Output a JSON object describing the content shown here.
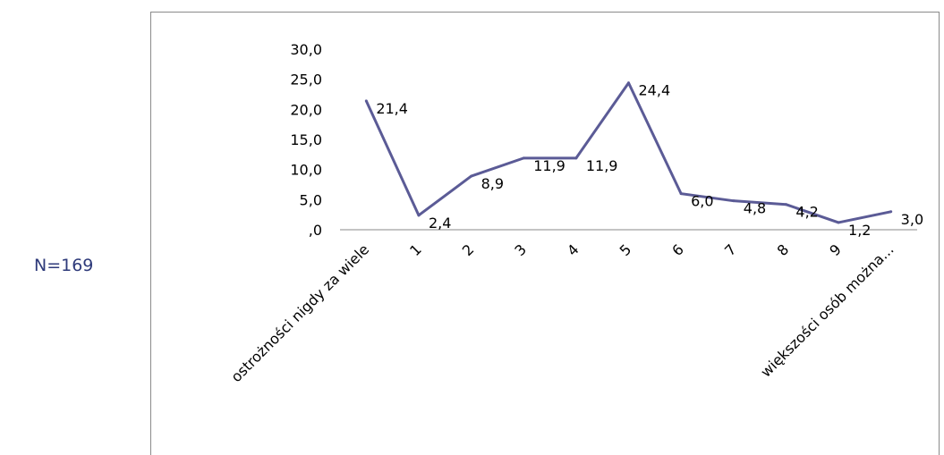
{
  "note": "N=169",
  "chart_data": {
    "type": "line",
    "title": "",
    "xlabel": "",
    "ylabel": "",
    "categories": [
      "ostrożności nigdy za wiele",
      "1",
      "2",
      "3",
      "4",
      "5",
      "6",
      "7",
      "8",
      "9",
      "większości osób można..."
    ],
    "values": [
      21.4,
      2.4,
      8.9,
      11.9,
      11.9,
      24.4,
      6.0,
      4.8,
      4.2,
      1.2,
      3.0
    ],
    "data_labels": [
      "21,4",
      "2,4",
      "8,9",
      "11,9",
      "11,9",
      "24,4",
      "6,0",
      "4,8",
      "4,2",
      "1,2",
      "3,0"
    ],
    "y_ticks": [
      {
        "value": 0,
        "label": ",0"
      },
      {
        "value": 5,
        "label": "5,0"
      },
      {
        "value": 10,
        "label": "10,0"
      },
      {
        "value": 15,
        "label": "15,0"
      },
      {
        "value": 20,
        "label": "20,0"
      },
      {
        "value": 25,
        "label": "25,0"
      },
      {
        "value": 30,
        "label": "30,0"
      }
    ],
    "ylim": [
      0,
      30
    ],
    "grid": false,
    "legend": "none",
    "line_color": "#5b5b96"
  }
}
